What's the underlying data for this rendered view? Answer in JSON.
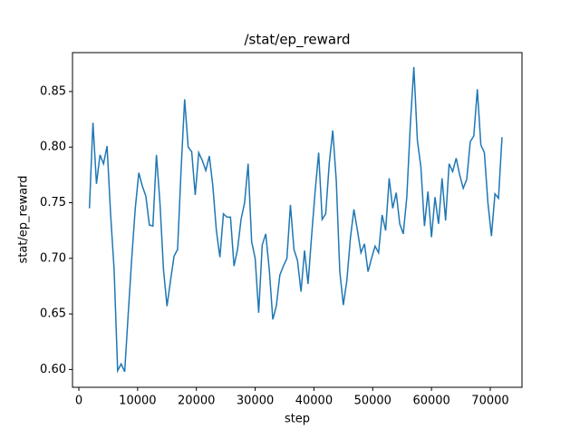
{
  "chart_data": {
    "type": "line",
    "title": "/stat/ep_reward",
    "x_label": "step",
    "y_label": "stat/ep_reward",
    "x": [
      1800,
      2400,
      3000,
      3600,
      4200,
      4800,
      5400,
      6000,
      6600,
      7200,
      7800,
      8400,
      9000,
      9600,
      10200,
      10800,
      11400,
      12000,
      12600,
      13200,
      13800,
      14400,
      15000,
      15600,
      16200,
      16800,
      17400,
      18000,
      18600,
      19200,
      19800,
      20400,
      21000,
      21600,
      22200,
      22800,
      23400,
      24000,
      24600,
      25200,
      25800,
      26400,
      27000,
      27600,
      28200,
      28800,
      29400,
      30000,
      30600,
      31200,
      31800,
      32400,
      33000,
      33600,
      34200,
      34800,
      35400,
      36000,
      36600,
      37200,
      37800,
      38400,
      39000,
      39600,
      40200,
      40800,
      41400,
      42000,
      42600,
      43200,
      43800,
      44400,
      45000,
      45600,
      46200,
      46800,
      47400,
      48000,
      48600,
      49200,
      49800,
      50400,
      51000,
      51600,
      52200,
      52800,
      53400,
      54000,
      54600,
      55200,
      55800,
      56400,
      57000,
      57600,
      58200,
      58800,
      59400,
      60000,
      60600,
      61200,
      61800,
      62400,
      63000,
      63600,
      64200,
      64800,
      65400,
      66000,
      66600,
      67200,
      67800,
      68400,
      69000,
      69600,
      70200,
      70800,
      71400,
      72000
    ],
    "series": [
      {
        "name": "stat/ep_reward",
        "color": "#1f77b4",
        "values": [
          0.745,
          0.822,
          0.767,
          0.793,
          0.785,
          0.801,
          0.74,
          0.69,
          0.599,
          0.605,
          0.598,
          0.65,
          0.7,
          0.745,
          0.777,
          0.765,
          0.756,
          0.73,
          0.729,
          0.793,
          0.75,
          0.69,
          0.657,
          0.68,
          0.702,
          0.708,
          0.78,
          0.843,
          0.8,
          0.796,
          0.757,
          0.795,
          0.788,
          0.779,
          0.792,
          0.765,
          0.725,
          0.701,
          0.74,
          0.737,
          0.737,
          0.693,
          0.708,
          0.735,
          0.75,
          0.785,
          0.715,
          0.7,
          0.651,
          0.712,
          0.722,
          0.69,
          0.645,
          0.657,
          0.685,
          0.693,
          0.7,
          0.748,
          0.708,
          0.698,
          0.67,
          0.707,
          0.677,
          0.72,
          0.76,
          0.795,
          0.735,
          0.74,
          0.785,
          0.815,
          0.77,
          0.688,
          0.658,
          0.68,
          0.718,
          0.744,
          0.725,
          0.705,
          0.713,
          0.688,
          0.7,
          0.711,
          0.705,
          0.739,
          0.725,
          0.772,
          0.745,
          0.759,
          0.731,
          0.722,
          0.755,
          0.82,
          0.872,
          0.806,
          0.782,
          0.729,
          0.76,
          0.719,
          0.755,
          0.731,
          0.772,
          0.734,
          0.785,
          0.778,
          0.79,
          0.775,
          0.763,
          0.771,
          0.805,
          0.81,
          0.852,
          0.802,
          0.795,
          0.75,
          0.72,
          0.758,
          0.754,
          0.809
        ]
      }
    ],
    "xlim": [
      -1080,
      75400
    ],
    "xticks": [
      0,
      10000,
      20000,
      30000,
      40000,
      50000,
      60000,
      70000
    ],
    "ylim": [
      0.584,
      0.885
    ],
    "yticks": [
      {
        "value": 0.6,
        "label": "0.60"
      },
      0.65,
      {
        "value": 0.7,
        "label": "0.70"
      },
      0.75,
      {
        "value": 0.8,
        "label": "0.80"
      },
      0.85
    ]
  }
}
